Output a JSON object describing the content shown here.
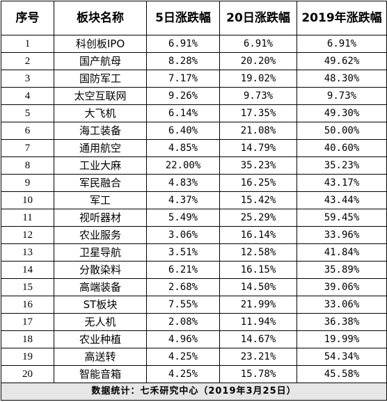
{
  "headers": [
    "序号",
    "板块名称",
    "5日涨跌幅",
    "20日涨跌幅",
    "2019年涨跌幅"
  ],
  "rows": [
    {
      "no": "1",
      "name": "科创板IPO",
      "d5": "6.91%",
      "d20": "6.91%",
      "ytd": "6.91%"
    },
    {
      "no": "2",
      "name": "国产航母",
      "d5": "8.28%",
      "d20": "20.20%",
      "ytd": "49.62%"
    },
    {
      "no": "3",
      "name": "国防军工",
      "d5": "7.17%",
      "d20": "19.02%",
      "ytd": "48.30%"
    },
    {
      "no": "4",
      "name": "太空互联网",
      "d5": "9.26%",
      "d20": "9.73%",
      "ytd": "9.73%"
    },
    {
      "no": "5",
      "name": "大飞机",
      "d5": "6.14%",
      "d20": "17.35%",
      "ytd": "49.30%"
    },
    {
      "no": "6",
      "name": "海工装备",
      "d5": "6.40%",
      "d20": "21.08%",
      "ytd": "50.00%"
    },
    {
      "no": "7",
      "name": "通用航空",
      "d5": "4.85%",
      "d20": "14.79%",
      "ytd": "40.60%"
    },
    {
      "no": "8",
      "name": "工业大麻",
      "d5": "22.00%",
      "d20": "35.23%",
      "ytd": "35.23%"
    },
    {
      "no": "9",
      "name": "军民融合",
      "d5": "4.83%",
      "d20": "16.25%",
      "ytd": "43.17%"
    },
    {
      "no": "10",
      "name": "军工",
      "d5": "4.37%",
      "d20": "15.42%",
      "ytd": "43.44%"
    },
    {
      "no": "11",
      "name": "视听器材",
      "d5": "5.49%",
      "d20": "25.29%",
      "ytd": "59.45%"
    },
    {
      "no": "12",
      "name": "农业服务",
      "d5": "3.06%",
      "d20": "16.14%",
      "ytd": "33.96%"
    },
    {
      "no": "13",
      "name": "卫星导航",
      "d5": "3.51%",
      "d20": "12.58%",
      "ytd": "41.84%"
    },
    {
      "no": "14",
      "name": "分散染料",
      "d5": "6.21%",
      "d20": "16.15%",
      "ytd": "35.89%"
    },
    {
      "no": "15",
      "name": "高端装备",
      "d5": "2.68%",
      "d20": "14.50%",
      "ytd": "39.06%"
    },
    {
      "no": "16",
      "name": "ST板块",
      "d5": "7.55%",
      "d20": "21.99%",
      "ytd": "33.06%"
    },
    {
      "no": "17",
      "name": "无人机",
      "d5": "2.08%",
      "d20": "11.94%",
      "ytd": "36.38%"
    },
    {
      "no": "18",
      "name": "农业种植",
      "d5": "4.96%",
      "d20": "14.67%",
      "ytd": "19.99%"
    },
    {
      "no": "19",
      "name": "高送转",
      "d5": "4.25%",
      "d20": "23.21%",
      "ytd": "54.34%"
    },
    {
      "no": "20",
      "name": "智能音箱",
      "d5": "4.25%",
      "d20": "15.78%",
      "ytd": "45.58%"
    }
  ],
  "footer": "数据统计：七禾研究中心（2019年3月25日）"
}
